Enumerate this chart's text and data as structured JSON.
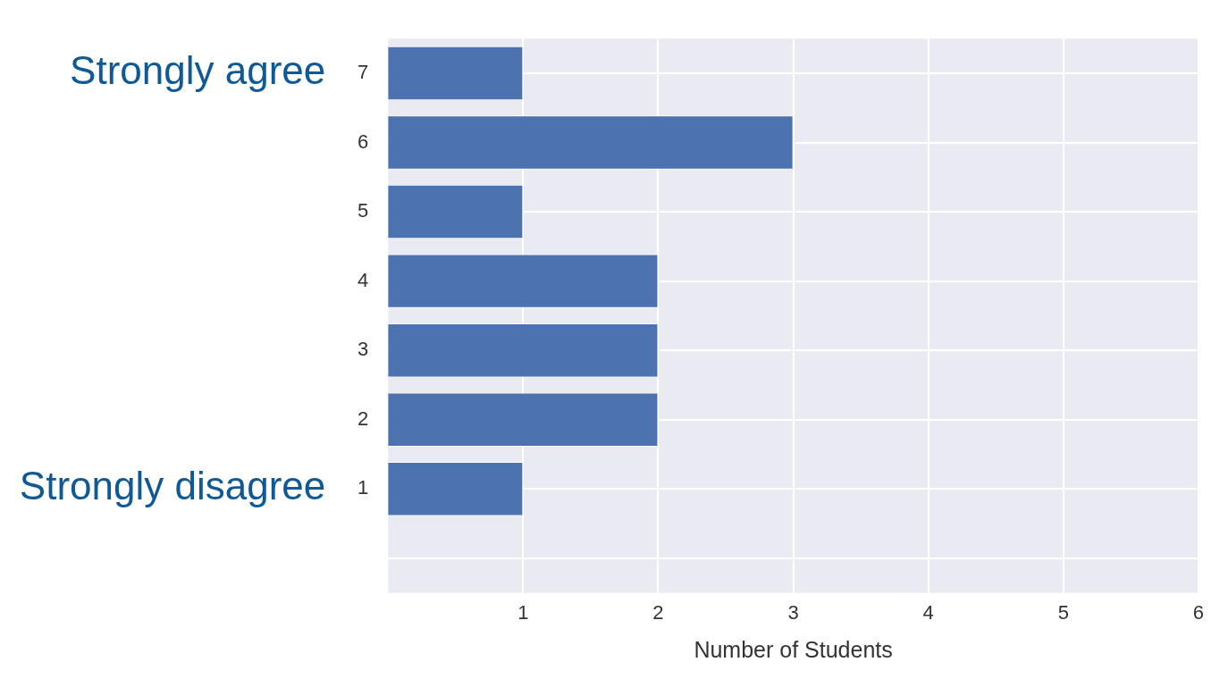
{
  "chart_data": {
    "type": "bar",
    "orientation": "horizontal",
    "categories": [
      "7",
      "6",
      "5",
      "4",
      "3",
      "2",
      "1",
      null
    ],
    "values": [
      1,
      3,
      1,
      2,
      2,
      2,
      1,
      null
    ],
    "color": "#4c72b0",
    "xlabel": "Number of Students",
    "xlim": [
      0,
      6
    ],
    "xticks": [
      1,
      2,
      3,
      4,
      5,
      6
    ],
    "grid": true,
    "legend": false,
    "annotations": [
      "Strongly agree",
      "Strongly disagree"
    ]
  }
}
